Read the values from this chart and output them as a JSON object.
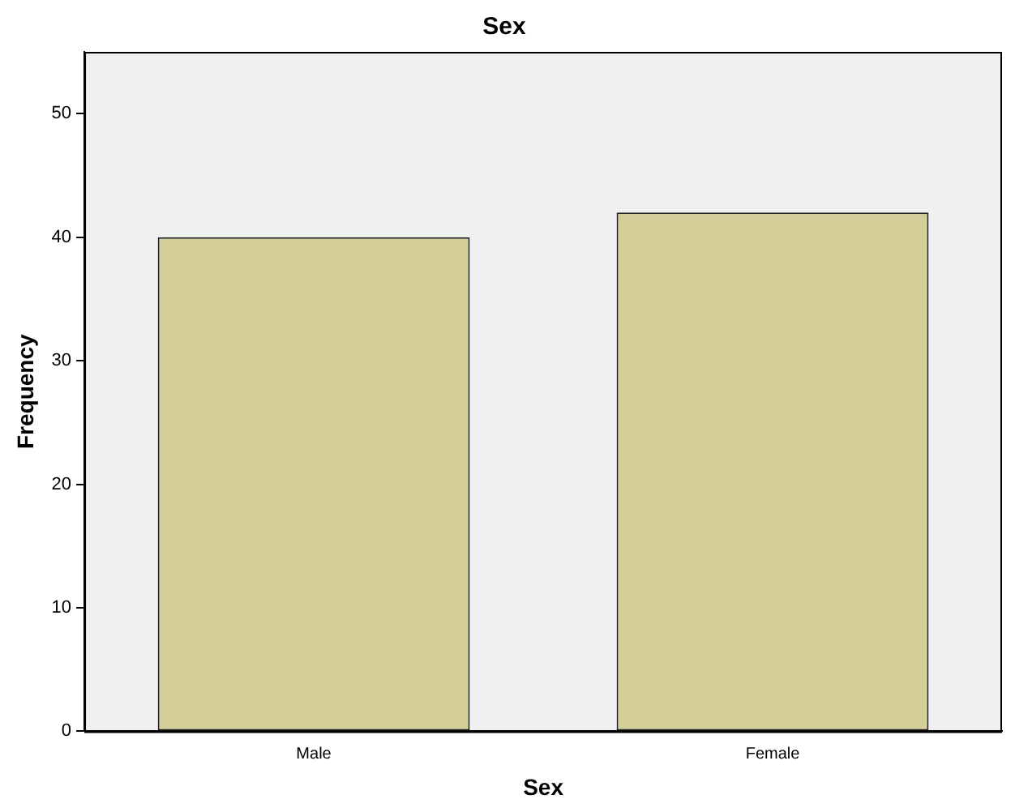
{
  "chart_data": {
    "type": "bar",
    "title": "Sex",
    "xlabel": "Sex",
    "ylabel": "Frequency",
    "categories": [
      "Male",
      "Female"
    ],
    "values": [
      40,
      42
    ],
    "color": "#d3ce97",
    "ylim": [
      0,
      55
    ],
    "yticks": [
      0,
      10,
      20,
      30,
      40,
      50
    ],
    "grid": false,
    "legend": false
  }
}
